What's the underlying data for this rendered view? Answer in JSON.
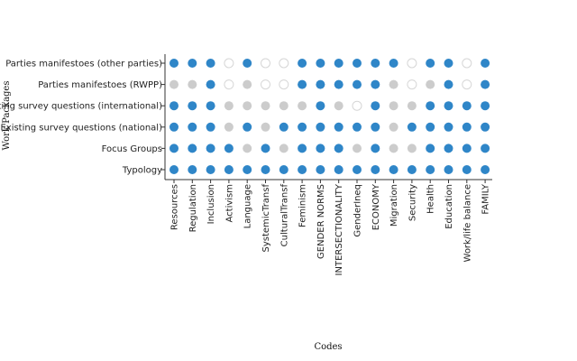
{
  "chart_data": {
    "type": "heatmap",
    "xlabel": "Codes",
    "ylabel": "Work Packages",
    "columns": [
      "Resources",
      "Regulation",
      "Inclusion",
      "Activism",
      "Language",
      "SystemicTransf",
      "CulturalTransf",
      "Feminism",
      "GENDER NORMS",
      "INTERSECTIONALITY",
      "GenderIneq",
      "ECONOMY",
      "Migration",
      "Security",
      "Health",
      "Education",
      "Work/life balance",
      "FAMILY"
    ],
    "rows": [
      "Parties manifestoes (other parties)",
      "Parties manifestoes (RWPP)",
      "Existing survey questions (international)",
      "Existing survey questions (national)",
      "Focus Groups",
      "Typology"
    ],
    "states": [
      "coded",
      "partial",
      "none"
    ],
    "colors": {
      "coded": "#2f86c8",
      "partial": "#cccccc",
      "none": "#ffffff",
      "none_stroke": "#d6d6d6"
    },
    "matrix": [
      [
        "coded",
        "coded",
        "coded",
        "none",
        "coded",
        "none",
        "none",
        "coded",
        "coded",
        "coded",
        "coded",
        "coded",
        "coded",
        "none",
        "coded",
        "coded",
        "none",
        "coded"
      ],
      [
        "partial",
        "partial",
        "coded",
        "none",
        "partial",
        "none",
        "none",
        "coded",
        "coded",
        "coded",
        "coded",
        "coded",
        "partial",
        "none",
        "partial",
        "coded",
        "none",
        "coded"
      ],
      [
        "coded",
        "coded",
        "coded",
        "partial",
        "partial",
        "partial",
        "partial",
        "partial",
        "coded",
        "partial",
        "none",
        "coded",
        "partial",
        "partial",
        "coded",
        "coded",
        "coded",
        "coded"
      ],
      [
        "coded",
        "coded",
        "coded",
        "partial",
        "coded",
        "partial",
        "coded",
        "coded",
        "coded",
        "coded",
        "coded",
        "coded",
        "partial",
        "coded",
        "coded",
        "coded",
        "coded",
        "coded"
      ],
      [
        "coded",
        "coded",
        "coded",
        "coded",
        "partial",
        "coded",
        "partial",
        "coded",
        "coded",
        "coded",
        "partial",
        "coded",
        "partial",
        "partial",
        "coded",
        "coded",
        "coded",
        "coded"
      ],
      [
        "coded",
        "coded",
        "coded",
        "coded",
        "coded",
        "coded",
        "coded",
        "coded",
        "coded",
        "coded",
        "coded",
        "coded",
        "coded",
        "coded",
        "coded",
        "coded",
        "coded",
        "coded"
      ]
    ]
  }
}
